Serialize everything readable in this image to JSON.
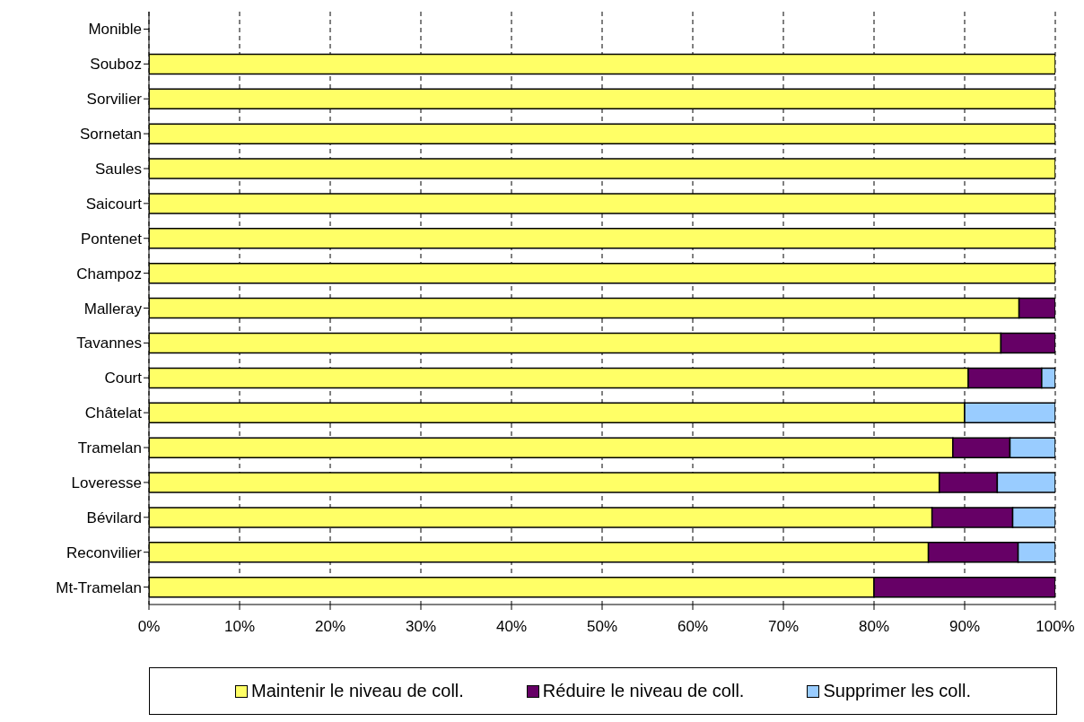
{
  "chart_data": {
    "type": "bar",
    "orientation": "horizontal",
    "stacked": true,
    "categories": [
      "Monible",
      "Souboz",
      "Sorvilier",
      "Sornetan",
      "Saules",
      "Saicourt",
      "Pontenet",
      "Champoz",
      "Malleray",
      "Tavannes",
      "Court",
      "Châtelat",
      "Tramelan",
      "Loveresse",
      "Bévilard",
      "Reconvilier",
      "Mt-Tramelan"
    ],
    "series": [
      {
        "name": "Maintenir le niveau de coll.",
        "color": "#ffff66",
        "values": [
          null,
          100,
          100,
          100,
          100,
          100,
          100,
          100,
          96,
          94,
          90.4,
          90,
          88.7,
          87.2,
          86.4,
          86,
          80
        ]
      },
      {
        "name": "Réduire le niveau de coll.",
        "color": "#660066",
        "values": [
          null,
          0,
          0,
          0,
          0,
          0,
          0,
          0,
          4,
          6,
          8.1,
          0,
          6.3,
          6.4,
          8.9,
          9.9,
          20
        ]
      },
      {
        "name": "Supprimer les coll.",
        "color": "#99ccff",
        "values": [
          null,
          0,
          0,
          0,
          0,
          0,
          0,
          0,
          0,
          0,
          1.5,
          10,
          5,
          6.4,
          4.7,
          4.1,
          0
        ]
      }
    ],
    "xlim": [
      0,
      100
    ],
    "xticks": [
      {
        "value": 0,
        "label": "0%"
      },
      {
        "value": 10,
        "label": "10%"
      },
      {
        "value": 20,
        "label": "20%"
      },
      {
        "value": 30,
        "label": "30%"
      },
      {
        "value": 40,
        "label": "40%"
      },
      {
        "value": 50,
        "label": "50%"
      },
      {
        "value": 60,
        "label": "60%"
      },
      {
        "value": 70,
        "label": "70%"
      },
      {
        "value": 80,
        "label": "80%"
      },
      {
        "value": 90,
        "label": "90%"
      },
      {
        "value": 100,
        "label": "100%"
      }
    ],
    "grid": "x",
    "legend": "bottom"
  }
}
